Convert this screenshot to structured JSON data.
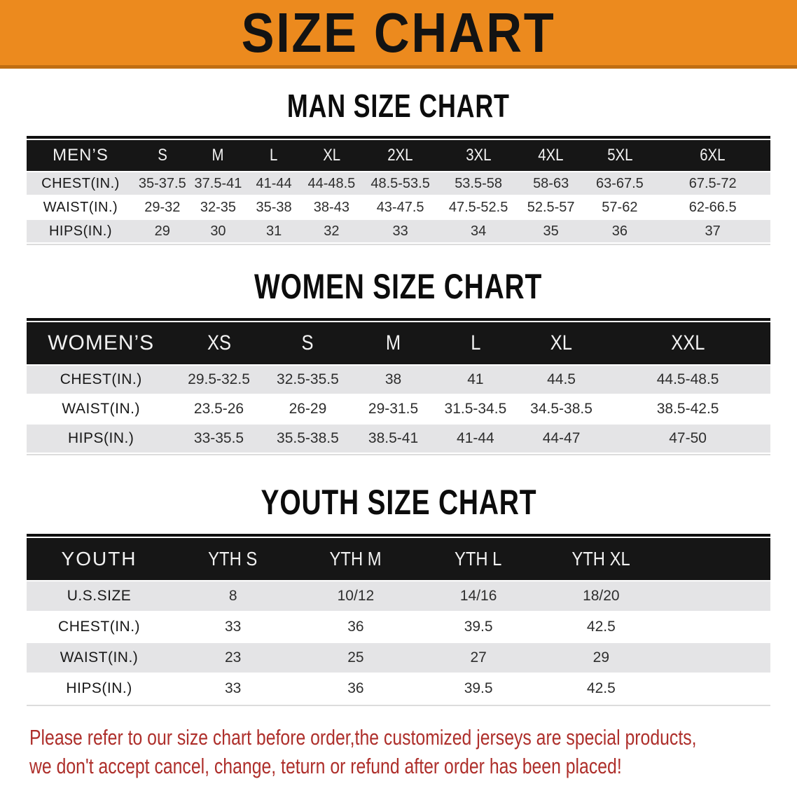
{
  "banner": {
    "title": "SIZE CHART"
  },
  "sections": [
    {
      "heading": "MAN SIZE CHART",
      "table": {
        "label": "MEN’S",
        "columns": [
          "S",
          "M",
          "L",
          "XL",
          "2XL",
          "3XL",
          "4XL",
          "5XL",
          "6XL"
        ],
        "rows": [
          {
            "label": "CHEST(IN.)",
            "values": [
              "35-37.5",
              "37.5-41",
              "41-44",
              "44-48.5",
              "48.5-53.5",
              "53.5-58",
              "58-63",
              "63-67.5",
              "67.5-72"
            ]
          },
          {
            "label": "WAIST(IN.)",
            "values": [
              "29-32",
              "32-35",
              "35-38",
              "38-43",
              "43-47.5",
              "47.5-52.5",
              "52.5-57",
              "57-62",
              "62-66.5"
            ]
          },
          {
            "label": "HIPS(IN.)",
            "values": [
              "29",
              "30",
              "31",
              "32",
              "33",
              "34",
              "35",
              "36",
              "37"
            ]
          }
        ]
      }
    },
    {
      "heading": "WOMEN SIZE CHART",
      "table": {
        "label": "WOMEN’S",
        "columns": [
          "XS",
          "S",
          "M",
          "L",
          "XL",
          "XXL"
        ],
        "rows": [
          {
            "label": "CHEST(IN.)",
            "values": [
              "29.5-32.5",
              "32.5-35.5",
              "38",
              "41",
              "44.5",
              "44.5-48.5"
            ]
          },
          {
            "label": "WAIST(IN.)",
            "values": [
              "23.5-26",
              "26-29",
              "29-31.5",
              "31.5-34.5",
              "34.5-38.5",
              "38.5-42.5"
            ]
          },
          {
            "label": "HIPS(IN.)",
            "values": [
              "33-35.5",
              "35.5-38.5",
              "38.5-41",
              "41-44",
              "44-47",
              "47-50"
            ]
          }
        ]
      }
    },
    {
      "heading": "YOUTH SIZE CHART",
      "table": {
        "label": "YOUTH",
        "columns": [
          "YTH S",
          "YTH M",
          "YTH L",
          "YTH XL"
        ],
        "rows": [
          {
            "label": "U.S.SIZE",
            "values": [
              "8",
              "10/12",
              "14/16",
              "18/20"
            ]
          },
          {
            "label": "CHEST(IN.)",
            "values": [
              "33",
              "36",
              "39.5",
              "42.5"
            ]
          },
          {
            "label": "WAIST(IN.)",
            "values": [
              "23",
              "25",
              "27",
              "29"
            ]
          },
          {
            "label": "HIPS(IN.)",
            "values": [
              "33",
              "36",
              "39.5",
              "42.5"
            ]
          }
        ]
      }
    }
  ],
  "footer": {
    "line1": "Please refer to our size chart before order,the customized jerseys are special products,",
    "line2": "we don't accept cancel, change, teturn or refund after order has been placed!"
  },
  "colors": {
    "banner_bg": "#EC8A1E",
    "banner_border": "#C06E12",
    "header_bg": "#161616",
    "row_shade": "#E4E4E6",
    "notice_red": "#AE2F2B"
  }
}
